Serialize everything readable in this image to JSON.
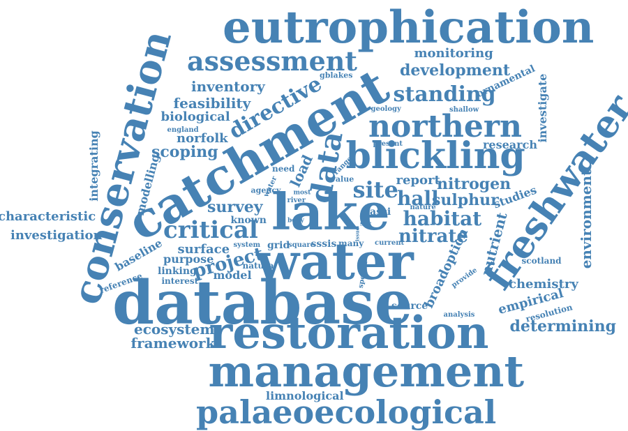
{
  "color": "#4682b4",
  "words": {
    "eutrophication": "eutrophication",
    "assessment": "assessment",
    "monitoring": "monitoring",
    "development": "development",
    "gblakes": "gblakes",
    "ornamental": "ornamental",
    "inventory": "inventory",
    "directive": "directive",
    "feasibility": "feasibility",
    "standing": "standing",
    "biological": "biological",
    "geology": "geology",
    "shallow": "shallow",
    "investigate": "investigate",
    "england": "england",
    "northern": "northern",
    "norfolk": "norfolk",
    "integrating": "integrating",
    "scoping": "scoping",
    "present": "present",
    "research": "research",
    "catchment": "catchment",
    "conservation": "conservation",
    "freshwater": "freshwater",
    "modelling": "modelling",
    "data": "data",
    "blickling": "blickling",
    "load": "load",
    "need": "need",
    "range": "range",
    "value": "value",
    "report": "report",
    "nitrogen": "nitrogen",
    "agency": "agency",
    "water_small": "water",
    "most": "most",
    "river": "river",
    "site": "site",
    "hall": "hall",
    "sulphur": "sulphur",
    "studies": "studies",
    "environment": "environment",
    "characteristic": "characteristic",
    "survey": "survey",
    "lake": "lake",
    "nature": "nature",
    "assi": "assi",
    "habitat": "habitat",
    "investigation": "investigation",
    "critical": "critical",
    "known": "known",
    "body": "body",
    "sac": "sac",
    "issue": "issue",
    "nutrient": "nutrient",
    "nitrate": "nitrate",
    "baseline": "baseline",
    "surface": "surface",
    "system": "system",
    "grid": "grid",
    "square": "square",
    "sssis": "sssis",
    "many": "many",
    "current": "current",
    "purpose": "purpose",
    "project": "project",
    "water": "water",
    "broadoption": "broadoption",
    "linking": "linking",
    "natura": "natura",
    "scotland": "scotland",
    "reference": "reference",
    "interest": "interest",
    "model": "model",
    "special": "special",
    "provide": "provide",
    "chemistry": "chemistry",
    "database": "database",
    "source": "source",
    "empirical": "empirical",
    "resolution": "resolution",
    "analysis": "analysis",
    "ecosystem": "ecosystem",
    "determining": "determining",
    "restoration": "restoration",
    "framework": "framework",
    "management": "management",
    "limnological": "limnological",
    "palaeoecological": "palaeoecological"
  }
}
